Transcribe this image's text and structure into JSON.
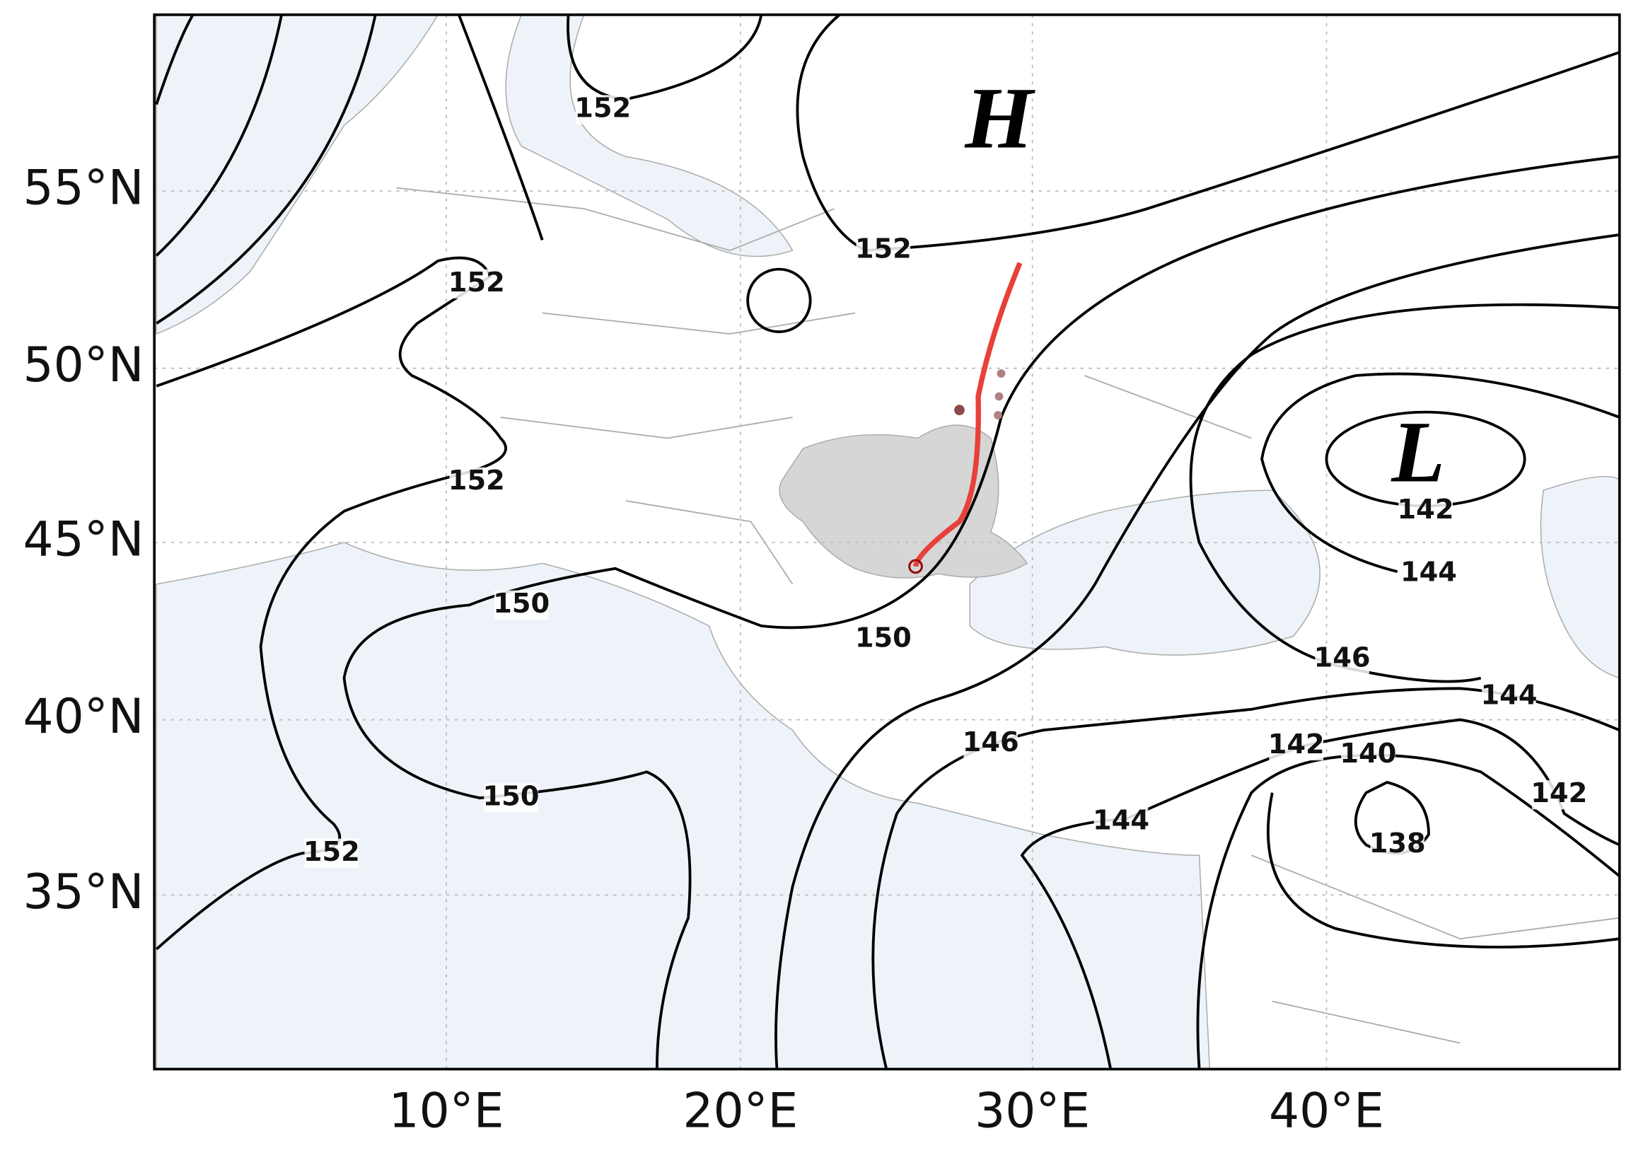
{
  "map": {
    "lat_labels": [
      "55°N",
      "50°N",
      "45°N",
      "40°N",
      "35°N"
    ],
    "lon_labels": [
      "10°E",
      "20°E",
      "30°E",
      "40°E"
    ],
    "pressure_centers": [
      {
        "label": "H"
      },
      {
        "label": "L"
      }
    ],
    "contour_labels": [
      152,
      152,
      152,
      152,
      150,
      150,
      150,
      152,
      146,
      144,
      142,
      144,
      146,
      144,
      142,
      140,
      142,
      138
    ]
  }
}
